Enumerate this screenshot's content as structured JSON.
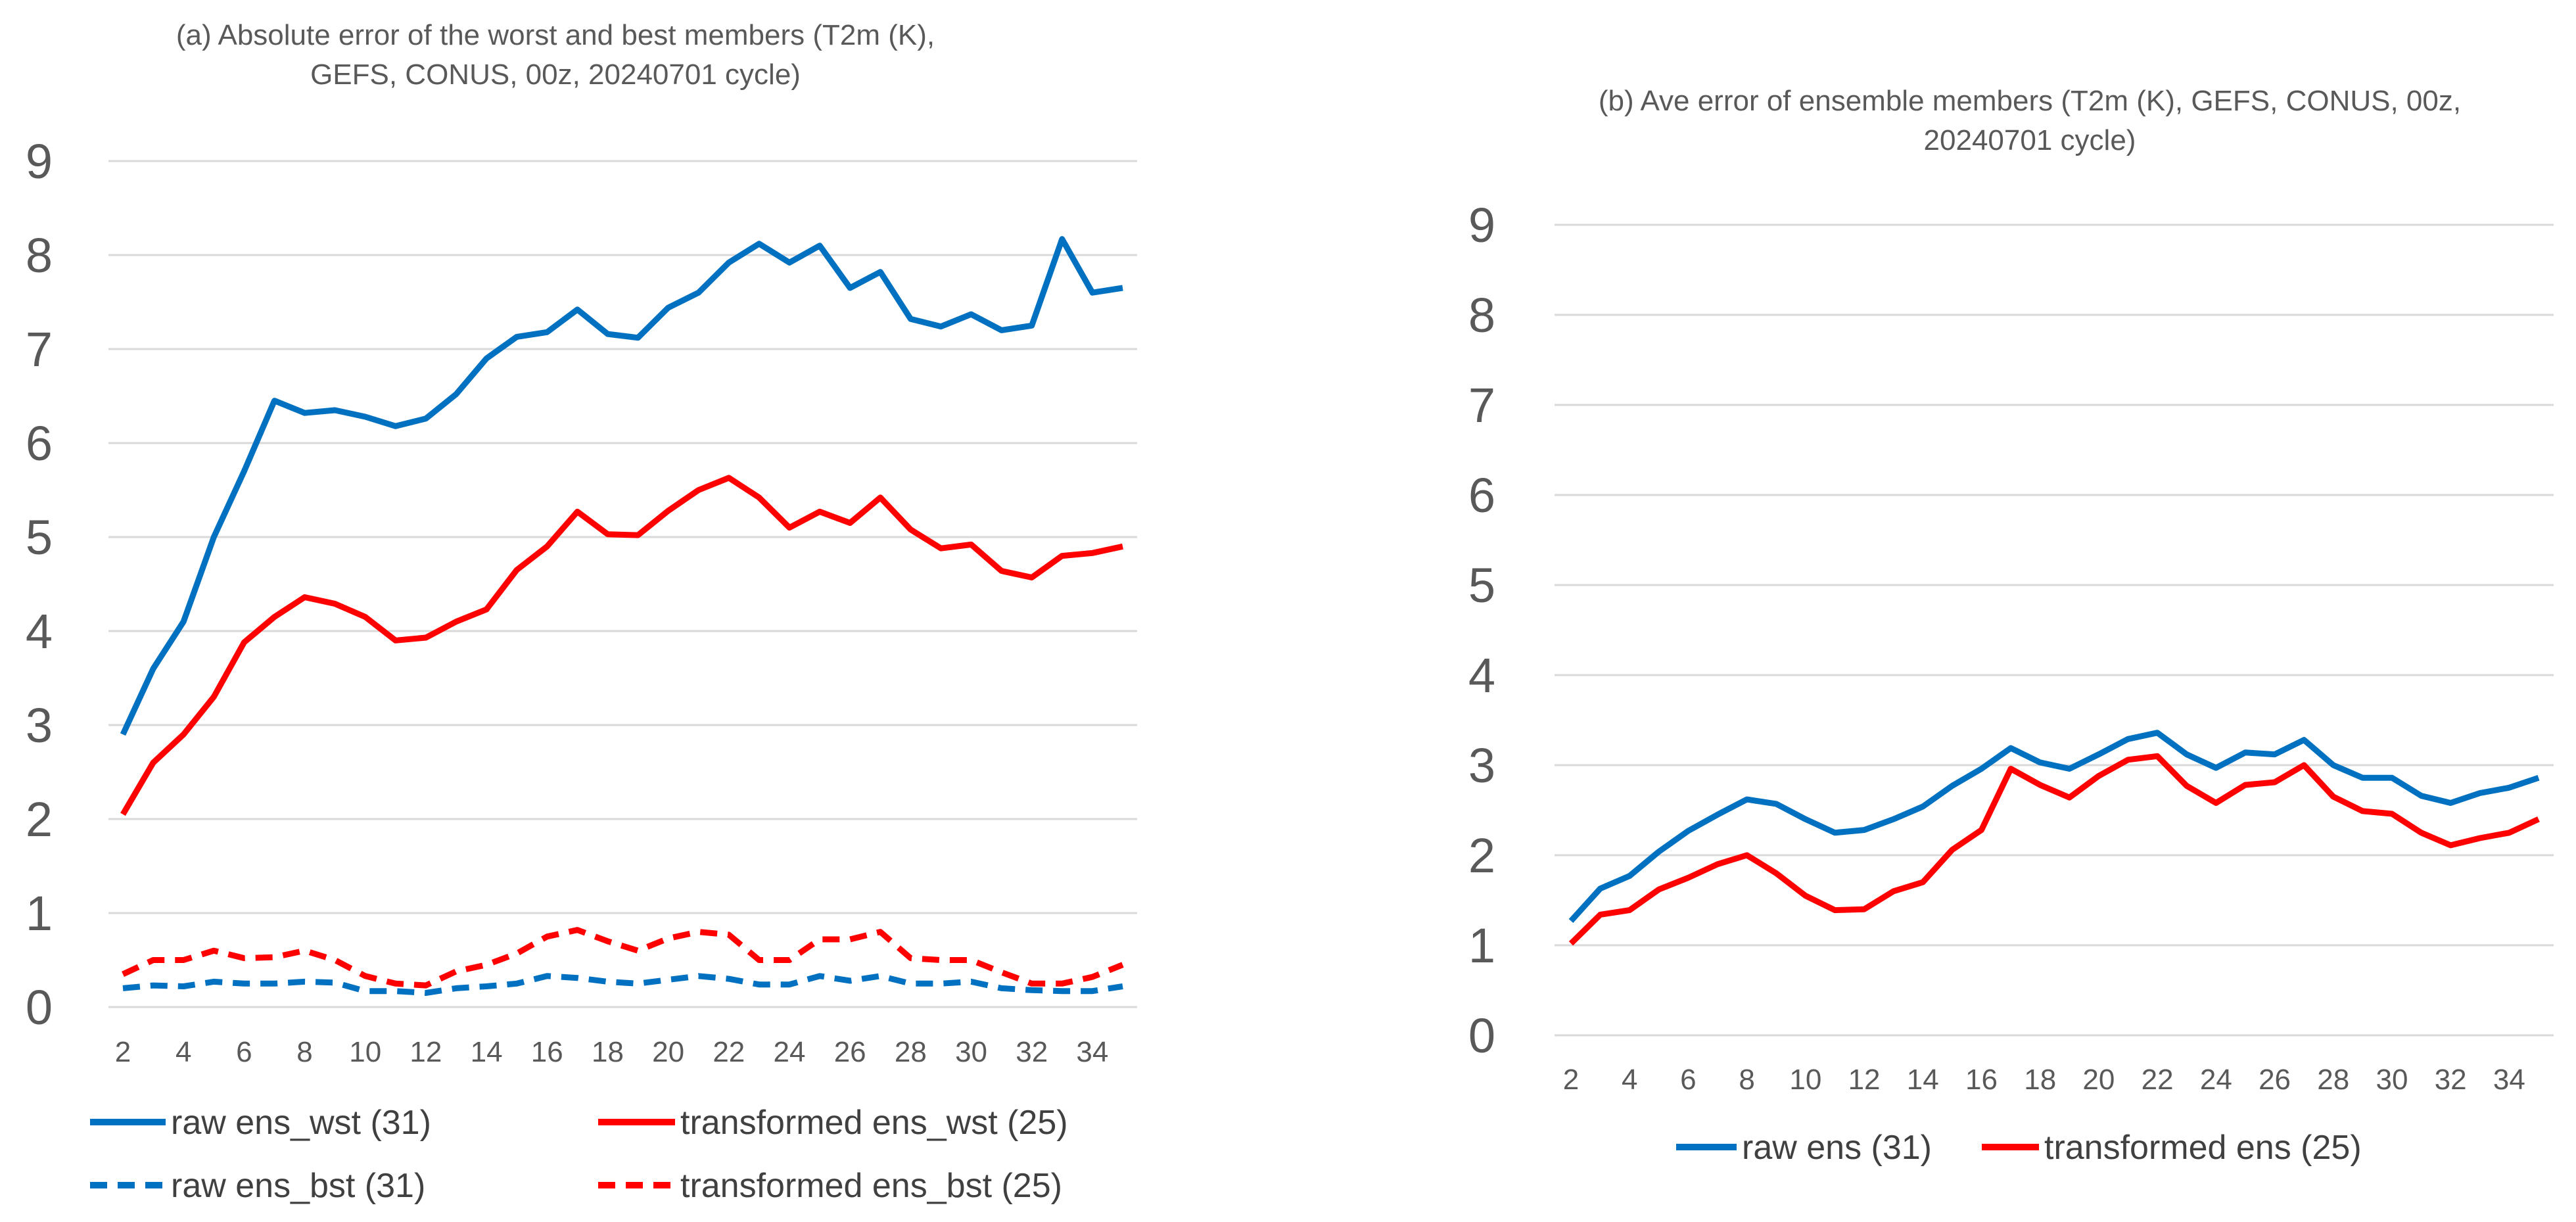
{
  "chart_data": [
    {
      "type": "line",
      "title_lines": [
        "(a) Absolute error of the worst and best members (T2m (K),",
        "GEFS, CONUS, 00z, 20240701 cycle)"
      ],
      "x": [
        2,
        3,
        4,
        5,
        6,
        7,
        8,
        9,
        10,
        11,
        12,
        13,
        14,
        15,
        16,
        17,
        18,
        19,
        20,
        21,
        22,
        23,
        24,
        25,
        26,
        27,
        28,
        29,
        30,
        31,
        32,
        33,
        34,
        35
      ],
      "x_tick_labels": [
        "2",
        "4",
        "6",
        "8",
        "10",
        "12",
        "14",
        "16",
        "18",
        "20",
        "22",
        "24",
        "26",
        "28",
        "30",
        "32",
        "34"
      ],
      "y_tick_labels": [
        "0",
        "1",
        "2",
        "3",
        "4",
        "5",
        "6",
        "7",
        "8",
        "9"
      ],
      "ylim": [
        0,
        9
      ],
      "grid": true,
      "legend_position": "bottom",
      "series": [
        {
          "name": "raw ens_wst (31)",
          "color": "#0070C0",
          "dash": "solid",
          "values": [
            2.9,
            3.6,
            4.1,
            5.0,
            5.7,
            6.45,
            6.32,
            6.35,
            6.28,
            6.18,
            6.26,
            6.52,
            6.9,
            7.13,
            7.18,
            7.42,
            7.16,
            7.12,
            7.44,
            7.6,
            7.92,
            8.12,
            7.92,
            8.1,
            7.65,
            7.82,
            7.32,
            7.24,
            7.37,
            7.2,
            7.25,
            8.17,
            7.6,
            7.65
          ]
        },
        {
          "name": "transformed ens_wst (25)",
          "color": "#FF0000",
          "dash": "solid",
          "values": [
            2.05,
            2.6,
            2.9,
            3.3,
            3.88,
            4.15,
            4.36,
            4.29,
            4.15,
            3.9,
            3.93,
            4.1,
            4.23,
            4.65,
            4.9,
            5.27,
            5.03,
            5.02,
            5.28,
            5.5,
            5.63,
            5.42,
            5.1,
            5.27,
            5.15,
            5.42,
            5.08,
            4.88,
            4.92,
            4.64,
            4.57,
            4.8,
            4.83,
            4.9
          ]
        },
        {
          "name": "raw ens_bst (31)",
          "color": "#0070C0",
          "dash": "dashed",
          "values": [
            0.2,
            0.23,
            0.22,
            0.27,
            0.25,
            0.25,
            0.27,
            0.26,
            0.17,
            0.17,
            0.15,
            0.2,
            0.22,
            0.25,
            0.33,
            0.31,
            0.27,
            0.25,
            0.29,
            0.33,
            0.3,
            0.24,
            0.24,
            0.33,
            0.28,
            0.33,
            0.25,
            0.25,
            0.27,
            0.2,
            0.18,
            0.17,
            0.17,
            0.22
          ]
        },
        {
          "name": "transformed ens_bst (25)",
          "color": "#FF0000",
          "dash": "dashed",
          "values": [
            0.35,
            0.5,
            0.5,
            0.6,
            0.52,
            0.53,
            0.6,
            0.5,
            0.33,
            0.25,
            0.23,
            0.38,
            0.45,
            0.57,
            0.75,
            0.82,
            0.7,
            0.6,
            0.73,
            0.8,
            0.77,
            0.5,
            0.5,
            0.72,
            0.72,
            0.8,
            0.52,
            0.5,
            0.5,
            0.37,
            0.25,
            0.25,
            0.32,
            0.45
          ]
        }
      ]
    },
    {
      "type": "line",
      "title_lines": [
        "(b) Ave error of ensemble members (T2m (K),  GEFS, CONUS, 00z,",
        "20240701 cycle)"
      ],
      "x": [
        2,
        3,
        4,
        5,
        6,
        7,
        8,
        9,
        10,
        11,
        12,
        13,
        14,
        15,
        16,
        17,
        18,
        19,
        20,
        21,
        22,
        23,
        24,
        25,
        26,
        27,
        28,
        29,
        30,
        31,
        32,
        33,
        34,
        35
      ],
      "x_tick_labels": [
        "2",
        "4",
        "6",
        "8",
        "10",
        "12",
        "14",
        "16",
        "18",
        "20",
        "22",
        "24",
        "26",
        "28",
        "30",
        "32",
        "34"
      ],
      "y_tick_labels": [
        "0",
        "1",
        "2",
        "3",
        "4",
        "5",
        "6",
        "7",
        "8",
        "9"
      ],
      "ylim": [
        0,
        9
      ],
      "grid": true,
      "legend_position": "bottom",
      "series": [
        {
          "name": "raw ens (31)",
          "color": "#0070C0",
          "dash": "solid",
          "values": [
            1.27,
            1.63,
            1.77,
            2.04,
            2.27,
            2.45,
            2.62,
            2.57,
            2.4,
            2.25,
            2.28,
            2.4,
            2.54,
            2.77,
            2.96,
            3.19,
            3.03,
            2.96,
            3.12,
            3.29,
            3.36,
            3.12,
            2.97,
            3.14,
            3.12,
            3.28,
            3.0,
            2.86,
            2.86,
            2.66,
            2.58,
            2.69,
            2.75,
            2.86
          ]
        },
        {
          "name": "transformed ens (25)",
          "color": "#FF0000",
          "dash": "solid",
          "values": [
            1.02,
            1.34,
            1.39,
            1.62,
            1.75,
            1.9,
            2.0,
            1.8,
            1.55,
            1.39,
            1.4,
            1.6,
            1.7,
            2.06,
            2.28,
            2.96,
            2.78,
            2.64,
            2.88,
            3.06,
            3.1,
            2.77,
            2.58,
            2.78,
            2.81,
            3.0,
            2.65,
            2.49,
            2.46,
            2.25,
            2.11,
            2.19,
            2.25,
            2.4
          ]
        }
      ]
    }
  ]
}
